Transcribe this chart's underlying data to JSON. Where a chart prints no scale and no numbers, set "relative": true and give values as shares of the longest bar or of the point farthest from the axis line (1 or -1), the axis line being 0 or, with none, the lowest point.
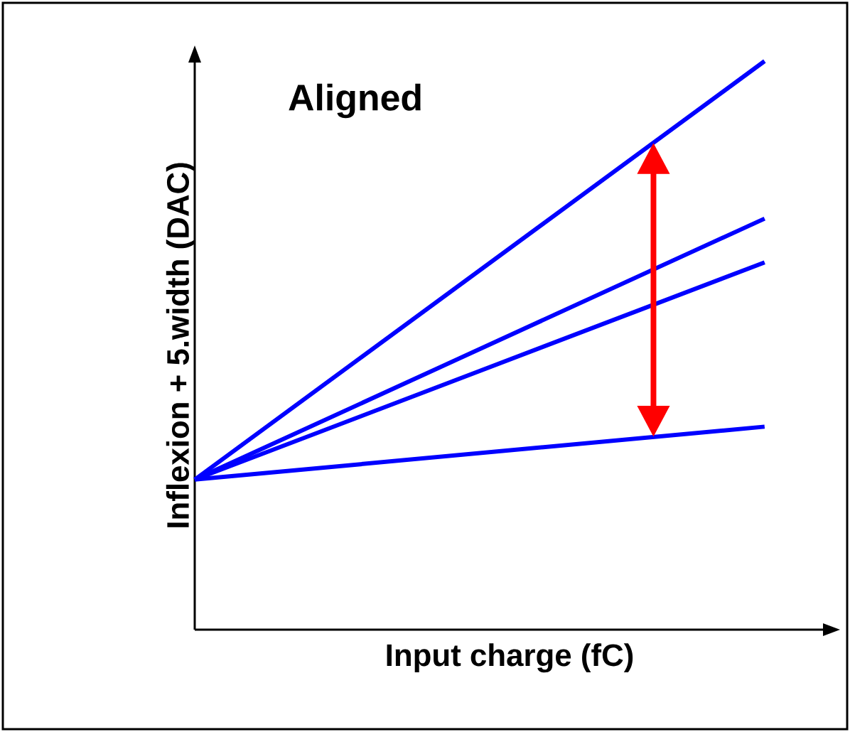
{
  "chart_data": {
    "type": "line",
    "title": "Aligned",
    "xlabel": "Input charge (fC)",
    "ylabel": "Inflexion + 5.width (DAC)",
    "relative": true,
    "categories": [
      null,
      null
    ],
    "series": [
      {
        "color": "#0000ff",
        "values": [
          0.264,
          1.0
        ]
      },
      {
        "color": "#0000ff",
        "values": [
          0.264,
          0.723
        ]
      },
      {
        "color": "#0000ff",
        "values": [
          0.264,
          0.646
        ]
      },
      {
        "color": "#0000ff",
        "values": [
          0.264,
          0.357
        ]
      }
    ],
    "marker": "none",
    "line_style": "solid"
  }
}
